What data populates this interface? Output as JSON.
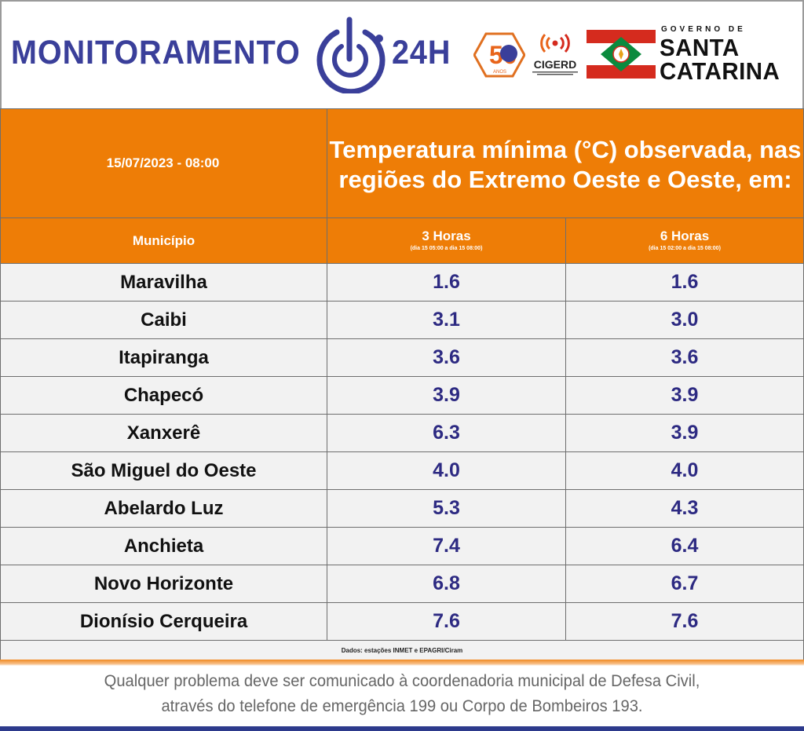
{
  "header": {
    "brand_word_1": "MONITORAMENTO",
    "brand_word_2": "24H",
    "logo_50_label": "50",
    "logo_50_sub": "ANOS",
    "cigerd_label": "CIGERD",
    "gov_small": "GOVERNO DE",
    "gov_line_1": "SANTA",
    "gov_line_2": "CATARINA",
    "icons": [
      "power-target-icon",
      "anniversary-50-logo",
      "cigerd-signal-logo",
      "santa-catarina-flag"
    ],
    "colors": {
      "brand_blue": "#3a3f9a",
      "orange": "#ee7d06",
      "flag_red": "#d52b1e",
      "flag_green": "#0b8a3e"
    }
  },
  "table": {
    "date_time": "15/07/2023 - 08:00",
    "title": "Temperatura mínima (°C) observada, nas regiões do Extremo Oeste e Oeste, em:",
    "col_municipio": "Município",
    "col_3h": "3 Horas",
    "col_3h_range": "(dia 15 05:00 a dia 15 08:00)",
    "col_6h": "6 Horas",
    "col_6h_range": "(dia 15 02:00 a dia 15 08:00)",
    "rows": [
      {
        "municipio": "Maravilha",
        "h3": "1.6",
        "h6": "1.6"
      },
      {
        "municipio": "Caibi",
        "h3": "3.1",
        "h6": "3.0"
      },
      {
        "municipio": "Itapiranga",
        "h3": "3.6",
        "h6": "3.6"
      },
      {
        "municipio": "Chapecó",
        "h3": "3.9",
        "h6": "3.9"
      },
      {
        "municipio": "Xanxerê",
        "h3": "6.3",
        "h6": "3.9"
      },
      {
        "municipio": "São Miguel do Oeste",
        "h3": "4.0",
        "h6": "4.0"
      },
      {
        "municipio": "Abelardo Luz",
        "h3": "5.3",
        "h6": "4.3"
      },
      {
        "municipio": "Anchieta",
        "h3": "7.4",
        "h6": "6.4"
      },
      {
        "municipio": "Novo Horizonte",
        "h3": "6.8",
        "h6": "6.7"
      },
      {
        "municipio": "Dionísio Cerqueira",
        "h3": "7.6",
        "h6": "7.6"
      }
    ],
    "source": "Dados: estações INMET e EPAGRI/Ciram"
  },
  "footer": {
    "line_1": "Qualquer problema deve ser comunicado à coordenadoria municipal de Defesa Civil,",
    "line_2": "através do telefone de emergência 199 ou Corpo de Bombeiros 193."
  }
}
